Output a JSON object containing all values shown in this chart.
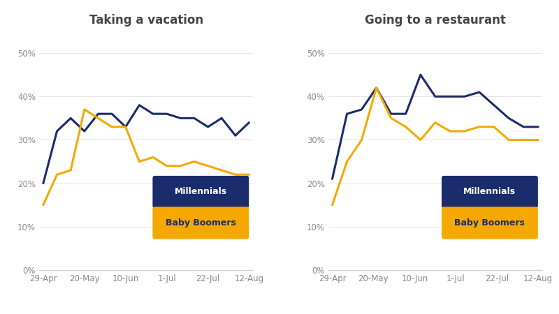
{
  "chart1": {
    "title": "Taking a vacation",
    "millennials": [
      20,
      32,
      35,
      32,
      36,
      36,
      33,
      38,
      36,
      36,
      35,
      35,
      33,
      35,
      31,
      34
    ],
    "baby_boomers": [
      15,
      22,
      23,
      37,
      35,
      33,
      33,
      25,
      26,
      24,
      24,
      25,
      24,
      23,
      22,
      22
    ]
  },
  "chart2": {
    "title": "Going to a restaurant",
    "millennials": [
      21,
      36,
      37,
      42,
      36,
      36,
      45,
      40,
      40,
      40,
      41,
      38,
      35,
      33,
      33
    ],
    "baby_boomers": [
      15,
      25,
      30,
      42,
      35,
      33,
      30,
      34,
      32,
      32,
      33,
      33,
      30,
      30,
      30
    ]
  },
  "x_labels": [
    "29-Apr",
    "20-May",
    "10-Jun",
    "1-Jul",
    "22-Jul",
    "12-Aug"
  ],
  "millennials_color": "#1a2c6b",
  "baby_boomers_color": "#f5a800",
  "millennials_label": "Millennials",
  "baby_boomers_label": "Baby Boomers",
  "y_ticks": [
    0,
    10,
    20,
    30,
    40,
    50
  ],
  "ylim": [
    0,
    55
  ],
  "line_width": 2.2,
  "bg_color": "#ffffff",
  "title_color": "#444444",
  "title_fontsize": 12,
  "legend_millennials_bg": "#1a2c6b",
  "legend_boomers_bg": "#f5a800",
  "legend_text_color_millennials": "#ffffff",
  "legend_text_color_boomers": "#1a2c6b",
  "tick_color": "#888888",
  "tick_fontsize": 8.5,
  "grid_color": "#e0e0e0"
}
